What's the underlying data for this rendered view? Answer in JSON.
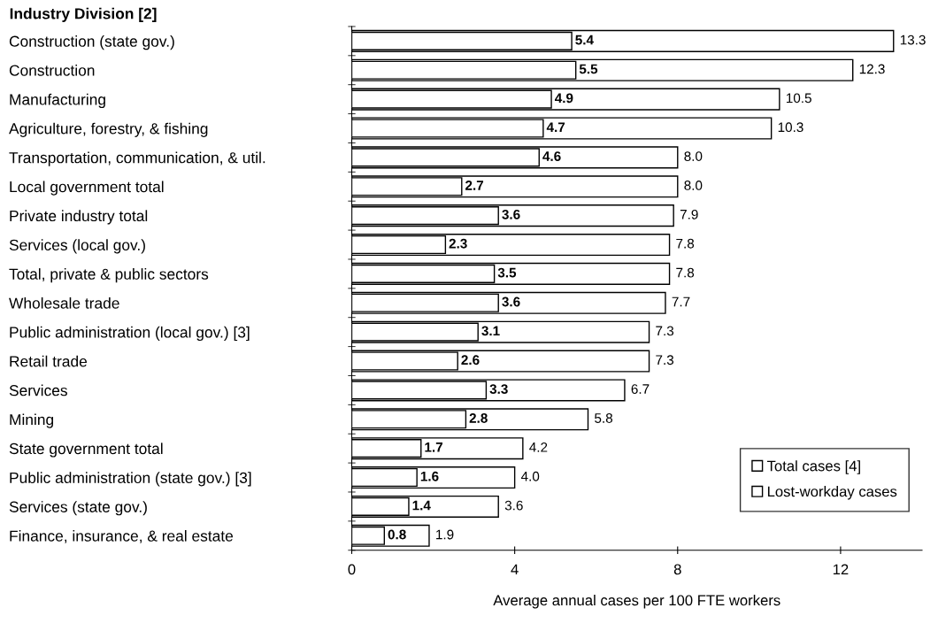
{
  "chart_data": {
    "type": "bar",
    "orientation": "horizontal",
    "title": "Industry Division [2]",
    "xlabel": "Average annual cases per 100 FTE workers",
    "categories": [
      "Construction (state gov.)",
      "Construction",
      "Manufacturing",
      "Agriculture, forestry, & fishing",
      "Transportation, communication, & util.",
      "Local government total",
      "Private industry total",
      "Services (local gov.)",
      "Total, private & public sectors",
      "Wholesale trade",
      "Public administration (local gov.) [3]",
      "Retail trade",
      "Services",
      "Mining",
      "State government total",
      "Public administration (state gov.) [3]",
      "Services (state gov.)",
      "Finance, insurance, & real estate"
    ],
    "series": [
      {
        "name": "Total cases [4]",
        "color": "#ffffff",
        "values": [
          13.3,
          12.3,
          10.5,
          10.3,
          8.0,
          8.0,
          7.9,
          7.8,
          7.8,
          7.7,
          7.3,
          7.3,
          6.7,
          5.8,
          4.2,
          4.0,
          3.6,
          1.9
        ],
        "value_labels": [
          "13.3",
          "12.3",
          "10.5",
          "10.3",
          "8.0",
          "8.0",
          "7.9",
          "7.8",
          "7.8",
          "7.7",
          "7.3",
          "7.3",
          "6.7",
          "5.8",
          "4.2",
          "4.0",
          "3.6",
          "1.9"
        ]
      },
      {
        "name": "Lost-workday cases",
        "color": "#ffffff",
        "values": [
          5.4,
          5.5,
          4.9,
          4.7,
          4.6,
          2.7,
          3.6,
          2.3,
          3.5,
          3.6,
          3.1,
          2.6,
          3.3,
          2.8,
          1.7,
          1.6,
          1.4,
          0.8
        ],
        "value_labels": [
          "5.4",
          "5.5",
          "4.9",
          "4.7",
          "4.6",
          "2.7",
          "3.6",
          "2.3",
          "3.5",
          "3.6",
          "3.1",
          "2.6",
          "3.3",
          "2.8",
          "1.7",
          "1.6",
          "1.4",
          "0.8"
        ]
      }
    ],
    "xlim": [
      0,
      14
    ],
    "xticks": [
      0,
      4,
      8,
      12
    ],
    "legend": "bottom right"
  }
}
